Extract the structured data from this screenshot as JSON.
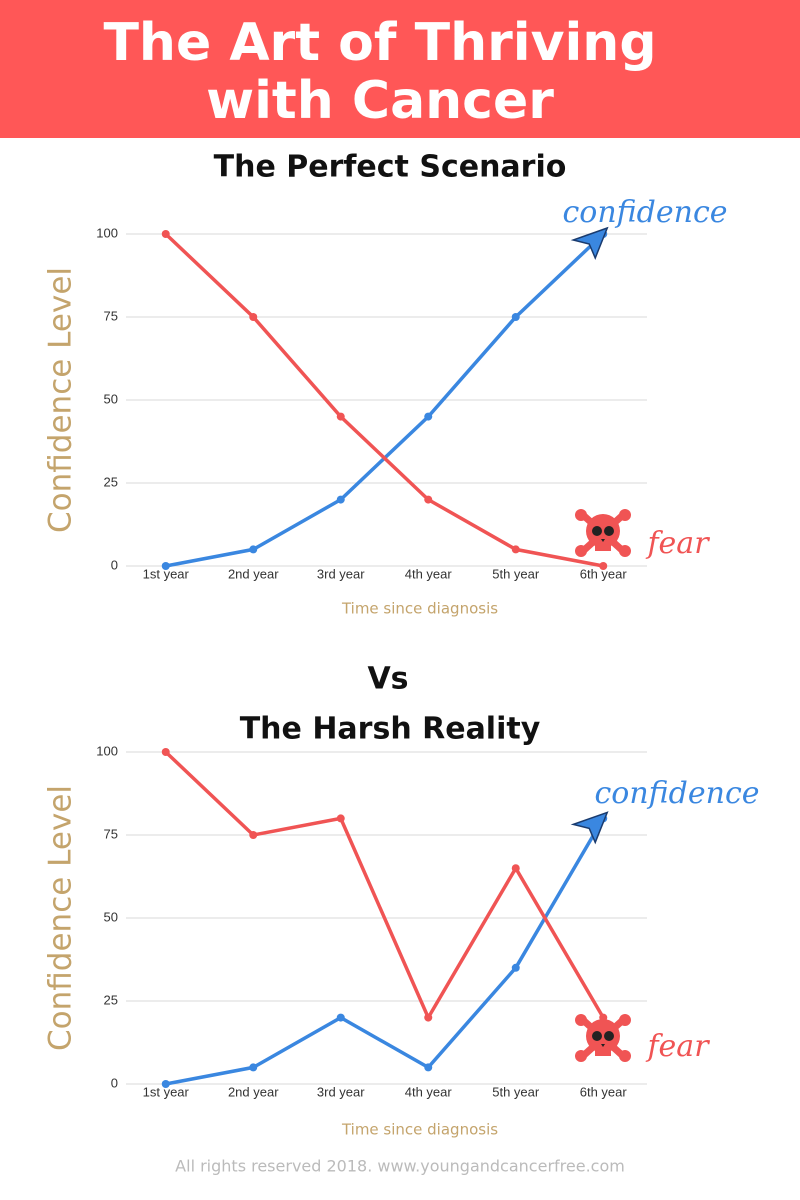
{
  "header": {
    "title_line1": "The Art of Thriving",
    "title_line2": "with Cancer"
  },
  "vs": "Vs",
  "footer": "All rights reserved 2018. www.youngandcancerfree.com",
  "chart_data": [
    {
      "type": "line",
      "title": "The Perfect Scenario",
      "categories": [
        "1st year",
        "2nd year",
        "3rd year",
        "4th year",
        "5th year",
        "6th year"
      ],
      "series": [
        {
          "name": "confidence",
          "color": "#3a87e0",
          "values": [
            0,
            5,
            20,
            45,
            75,
            100
          ]
        },
        {
          "name": "fear",
          "color": "#f05454",
          "values": [
            100,
            75,
            45,
            20,
            5,
            0
          ]
        }
      ],
      "ylim": [
        0,
        100
      ],
      "yticks": [
        0,
        25,
        50,
        75,
        100
      ],
      "grid": true,
      "x_label": "Time since diagnosis",
      "y_label": "Confidence Level"
    },
    {
      "type": "line",
      "title": "The Harsh Reality",
      "categories": [
        "1st year",
        "2nd year",
        "3rd year",
        "4th year",
        "5th year",
        "6th year"
      ],
      "series": [
        {
          "name": "confidence",
          "color": "#3a87e0",
          "values": [
            0,
            5,
            20,
            5,
            35,
            80
          ]
        },
        {
          "name": "fear",
          "color": "#f05454",
          "values": [
            100,
            75,
            80,
            20,
            65,
            20
          ]
        }
      ],
      "ylim": [
        0,
        100
      ],
      "yticks": [
        0,
        25,
        50,
        75,
        100
      ],
      "grid": true,
      "x_label": "Time since diagnosis",
      "y_label": "Confidence Level"
    }
  ]
}
